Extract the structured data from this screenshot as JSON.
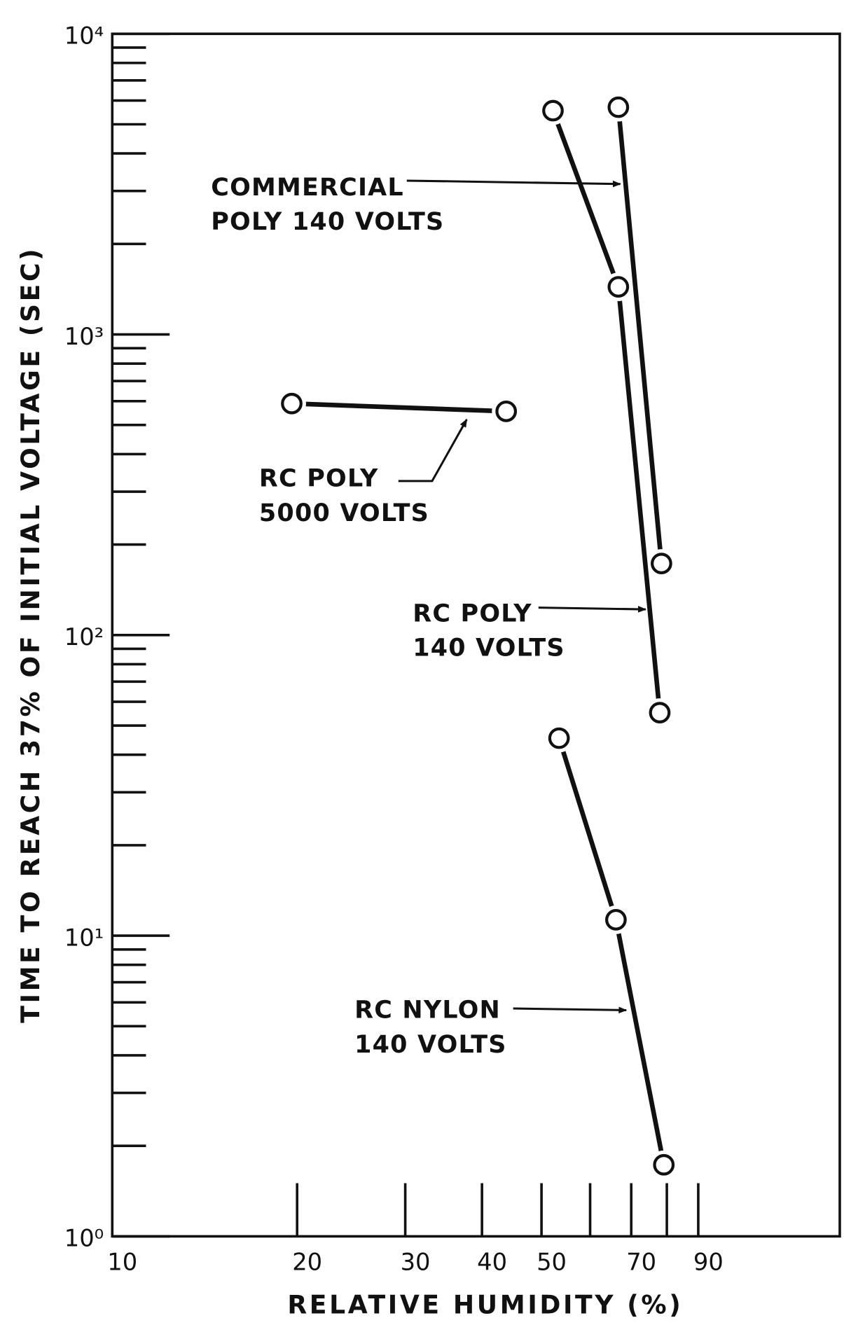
{
  "chart_data": {
    "type": "line",
    "y_label": "TIME TO REACH 37% OF INITIAL VOLTAGE (SEC)",
    "x_label": "RELATIVE HUMIDITY (%)",
    "xscale": "log",
    "yscale": "log",
    "xlim": [
      10,
      153
    ],
    "ylim": [
      1,
      10000
    ],
    "xticks": [
      10,
      20,
      30,
      40,
      50,
      70,
      90
    ],
    "x_minor_ticks": [
      20,
      30,
      40,
      50,
      60,
      70,
      80,
      90
    ],
    "yticks": [
      {
        "value": 1,
        "label": "10⁰"
      },
      {
        "value": 10,
        "label": "10¹"
      },
      {
        "value": 100,
        "label": "10²"
      },
      {
        "value": 1000,
        "label": "10³"
      },
      {
        "value": 10000,
        "label": "10⁴"
      }
    ],
    "y_minor_ticks": [
      2,
      3,
      4,
      5,
      6,
      7,
      8,
      9,
      20,
      30,
      40,
      50,
      60,
      70,
      80,
      90,
      200,
      300,
      400,
      500,
      600,
      700,
      800,
      900,
      2000,
      3000,
      4000,
      5000,
      6000,
      7000,
      8000,
      9000
    ],
    "color": "#111111",
    "series": [
      {
        "x": [
          66.7,
          78.4
        ],
        "values": [
          5700,
          173
        ]
      },
      {
        "x": [
          52.2,
          66.7,
          77.9
        ],
        "values": [
          5550,
          1440,
          55.2
        ]
      },
      {
        "x": [
          19.6,
          43.8
        ],
        "values": [
          589,
          555
        ]
      },
      {
        "x": [
          53.4,
          66.1,
          79.1
        ],
        "values": [
          45.4,
          11.3,
          1.73
        ]
      }
    ],
    "annotations": [
      [
        "COMMERCIAL",
        "POLY  140 VOLTS"
      ],
      [
        "RC  POLY",
        "5000  VOLTS"
      ],
      [
        "RC  POLY",
        "140  VOLTS"
      ],
      [
        "RC  NYLON",
        "140  VOLTS"
      ]
    ]
  }
}
